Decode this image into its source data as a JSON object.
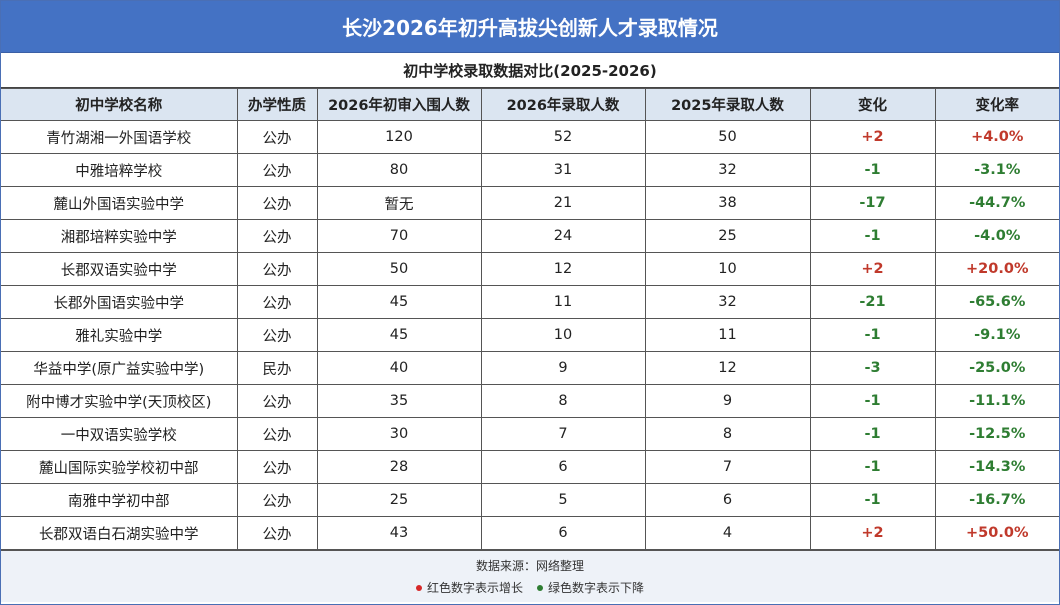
{
  "title": "长沙2026年初升高拔尖创新人才录取情况",
  "subtitle": "初中学校录取数据对比(2025-2026)",
  "headers": [
    "初中学校名称",
    "办学性质",
    "2026年初审入围人数",
    "2026年录取人数",
    "2025年录取人数",
    "变化",
    "变化率"
  ],
  "rows": [
    {
      "school": "青竹湖湘一外国语学校",
      "type": "公办",
      "shortlisted_2026": "120",
      "admitted_2026": "52",
      "admitted_2025": "50",
      "change": "+2",
      "rate": "+4.0%",
      "trend": "up"
    },
    {
      "school": "中雅培粹学校",
      "type": "公办",
      "shortlisted_2026": "80",
      "admitted_2026": "31",
      "admitted_2025": "32",
      "change": "-1",
      "rate": "-3.1%",
      "trend": "down"
    },
    {
      "school": "麓山外国语实验中学",
      "type": "公办",
      "shortlisted_2026": "暂无",
      "admitted_2026": "21",
      "admitted_2025": "38",
      "change": "-17",
      "rate": "-44.7%",
      "trend": "down"
    },
    {
      "school": "湘郡培粹实验中学",
      "type": "公办",
      "shortlisted_2026": "70",
      "admitted_2026": "24",
      "admitted_2025": "25",
      "change": "-1",
      "rate": "-4.0%",
      "trend": "down"
    },
    {
      "school": "长郡双语实验中学",
      "type": "公办",
      "shortlisted_2026": "50",
      "admitted_2026": "12",
      "admitted_2025": "10",
      "change": "+2",
      "rate": "+20.0%",
      "trend": "up"
    },
    {
      "school": "长郡外国语实验中学",
      "type": "公办",
      "shortlisted_2026": "45",
      "admitted_2026": "11",
      "admitted_2025": "32",
      "change": "-21",
      "rate": "-65.6%",
      "trend": "down"
    },
    {
      "school": "雅礼实验中学",
      "type": "公办",
      "shortlisted_2026": "45",
      "admitted_2026": "10",
      "admitted_2025": "11",
      "change": "-1",
      "rate": "-9.1%",
      "trend": "down"
    },
    {
      "school": "华益中学(原广益实验中学)",
      "type": "民办",
      "shortlisted_2026": "40",
      "admitted_2026": "9",
      "admitted_2025": "12",
      "change": "-3",
      "rate": "-25.0%",
      "trend": "down"
    },
    {
      "school": "附中博才实验中学(天顶校区)",
      "type": "公办",
      "shortlisted_2026": "35",
      "admitted_2026": "8",
      "admitted_2025": "9",
      "change": "-1",
      "rate": "-11.1%",
      "trend": "down"
    },
    {
      "school": "一中双语实验学校",
      "type": "公办",
      "shortlisted_2026": "30",
      "admitted_2026": "7",
      "admitted_2025": "8",
      "change": "-1",
      "rate": "-12.5%",
      "trend": "down"
    },
    {
      "school": "麓山国际实验学校初中部",
      "type": "公办",
      "shortlisted_2026": "28",
      "admitted_2026": "6",
      "admitted_2025": "7",
      "change": "-1",
      "rate": "-14.3%",
      "trend": "down"
    },
    {
      "school": "南雅中学初中部",
      "type": "公办",
      "shortlisted_2026": "25",
      "admitted_2026": "5",
      "admitted_2025": "6",
      "change": "-1",
      "rate": "-16.7%",
      "trend": "down"
    },
    {
      "school": "长郡双语白石湖实验中学",
      "type": "公办",
      "shortlisted_2026": "43",
      "admitted_2026": "6",
      "admitted_2025": "4",
      "change": "+2",
      "rate": "+50.0%",
      "trend": "up"
    }
  ],
  "footer": {
    "source": "数据来源：网络整理",
    "legend_up": "红色数字表示增长",
    "legend_down": "绿色数字表示下降"
  },
  "colors": {
    "header_bg": "#4472c4",
    "column_header_bg": "#dbe5f1",
    "up": "#c0392b",
    "down": "#2e7d32"
  }
}
